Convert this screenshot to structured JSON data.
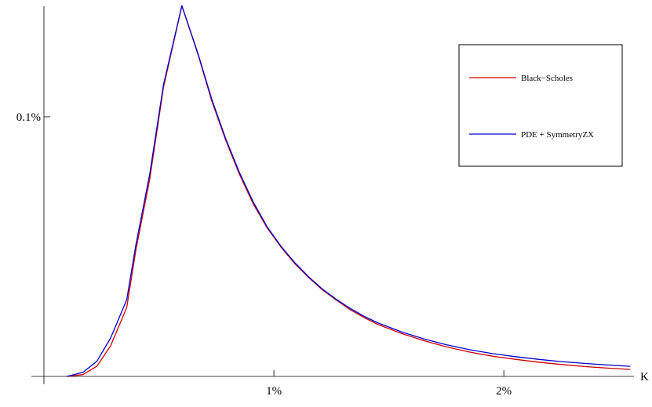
{
  "chart_data": {
    "type": "line",
    "title": "",
    "xlabel": "K",
    "ylabel": "",
    "xlim": [
      0.0,
      2.6
    ],
    "ylim": [
      0.0,
      0.145
    ],
    "x_ticks": [
      {
        "value": 1.0,
        "label": "1%"
      },
      {
        "value": 2.0,
        "label": "2%"
      }
    ],
    "y_ticks": [
      {
        "value": 0.1,
        "label": "0.1%"
      }
    ],
    "grid": false,
    "legend_position": "top-right",
    "x": [
      0.1,
      0.17,
      0.23,
      0.29,
      0.36,
      0.4,
      0.46,
      0.52,
      0.6,
      0.67,
      0.73,
      0.79,
      0.85,
      0.91,
      0.97,
      1.03,
      1.09,
      1.15,
      1.21,
      1.27,
      1.33,
      1.39,
      1.45,
      1.55,
      1.65,
      1.75,
      1.85,
      1.95,
      2.05,
      2.15,
      2.25,
      2.35,
      2.45,
      2.55
    ],
    "series": [
      {
        "name": "Black−Scholes",
        "color": "#cc0000",
        "values": [
          0.0,
          0.0007,
          0.0039,
          0.0118,
          0.0265,
          0.0487,
          0.0759,
          0.1114,
          0.1428,
          0.124,
          0.1061,
          0.0911,
          0.0779,
          0.0665,
          0.0573,
          0.0499,
          0.0435,
          0.0382,
          0.0334,
          0.0295,
          0.0258,
          0.0228,
          0.0201,
          0.0167,
          0.0138,
          0.0114,
          0.0094,
          0.0078,
          0.0066,
          0.0055,
          0.0046,
          0.0038,
          0.0032,
          0.0027
        ]
      },
      {
        "name": "PDE + SymmetryZX",
        "color": "#0000cc",
        "values": [
          0.0,
          0.0016,
          0.0058,
          0.0148,
          0.0295,
          0.0507,
          0.0779,
          0.1124,
          0.1428,
          0.1243,
          0.1068,
          0.0917,
          0.0786,
          0.0672,
          0.0577,
          0.0502,
          0.0439,
          0.0385,
          0.0337,
          0.0298,
          0.0263,
          0.0233,
          0.0207,
          0.0173,
          0.0145,
          0.0122,
          0.0103,
          0.0088,
          0.0076,
          0.0066,
          0.0057,
          0.005,
          0.0044,
          0.0039
        ]
      }
    ]
  }
}
